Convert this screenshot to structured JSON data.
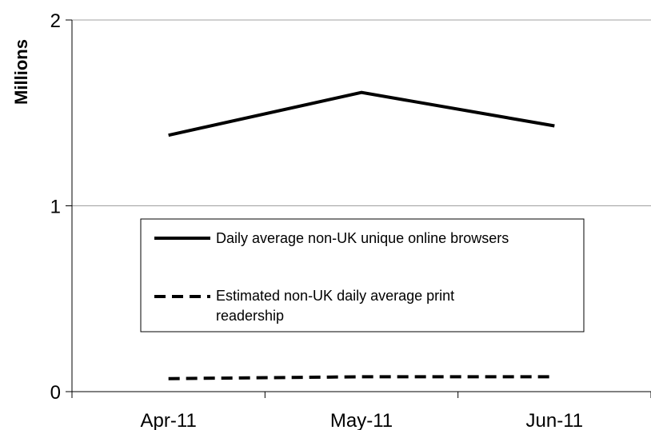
{
  "chart_data": {
    "type": "line",
    "title": "",
    "xlabel": "",
    "ylabel": "Millions",
    "categories": [
      "Apr-11",
      "May-11",
      "Jun-11"
    ],
    "ylim": [
      0,
      2
    ],
    "yticks": [
      "0",
      "1",
      "2"
    ],
    "grid": true,
    "legend_position": "center",
    "series": [
      {
        "name": "Daily average non-UK unique online browsers",
        "line_style": "solid",
        "color": "#000000",
        "values": [
          1.38,
          1.61,
          1.43
        ]
      },
      {
        "name": "Estimated non-UK daily average print readership",
        "name_lines": [
          "Estimated non-UK daily average print",
          "readership"
        ],
        "line_style": "dashed",
        "color": "#000000",
        "values": [
          0.07,
          0.08,
          0.08
        ]
      }
    ]
  }
}
